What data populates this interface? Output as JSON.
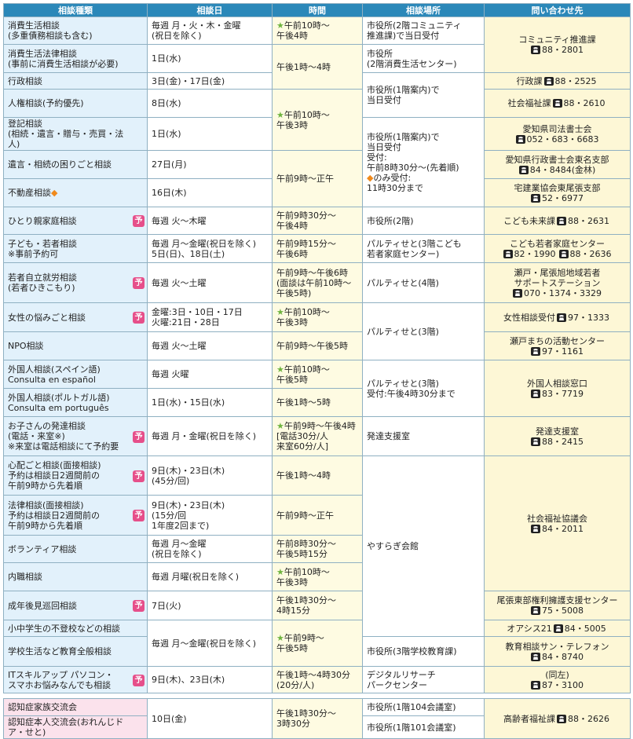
{
  "header": [
    "相談種類",
    "相談日",
    "時間",
    "相談場所",
    "問い合わせ先"
  ],
  "rows": [
    {
      "type": "消費生活相談\n(多重債務相談も含む)",
      "date": "毎週 月・火・木・金曜\n(祝日を除く)",
      "star": "★",
      "time": "午前10時～\n午後4時",
      "place": "市役所(2階コミュニティ\n推進課)で当日受付",
      "contact": {
        "name": "コミュニティ推進課",
        "phones": [
          "88・2801"
        ]
      }
    },
    {
      "type": "消費生活法律相談\n(事前に消費生活相談が必要)",
      "date": "1日(水)",
      "time": "午後1時～4時",
      "place": "市役所\n(2階消費生活センター)"
    },
    {
      "type": "行政相談",
      "date": "3日(金)・17日(金)",
      "place": "市役所(1階案内)で\n当日受付",
      "contact": {
        "name": "行政課",
        "phones": [
          "88・2525"
        ]
      }
    },
    {
      "type": "人権相談(予約優先)",
      "date": "8日(水)",
      "star": "★",
      "time": "午前10時～\n午後3時",
      "contact": {
        "name": "社会福祉課",
        "phones": [
          "88・2610"
        ]
      }
    },
    {
      "type": "登記相談\n(相続・遺言・贈与・売買・法人)",
      "date": "1日(水)",
      "place": "市役所(1階案内)で\n当日受付\n受付:\n午前8時30分～(先着順)\n",
      "place_mark": "◆",
      "place2": "のみ受付:\n11時30分まで",
      "contact": {
        "name": "愛知県司法書士会",
        "phones": [
          "052・683・6683"
        ]
      }
    },
    {
      "type": "遺言・相続の困りごと相談",
      "date": "27日(月)",
      "time": "午前9時～正午",
      "contact": {
        "name": "愛知県行政書士会東名支部",
        "phones": [
          "84・8484(金林)"
        ]
      }
    },
    {
      "type": "不動産相談",
      "type_mark": "◆",
      "date": "16日(木)",
      "contact": {
        "name": "宅建業協会東尾張支部",
        "phones": [
          "52・6977"
        ]
      }
    },
    {
      "type": "ひとり親家庭相談",
      "badge": "予",
      "date": "毎週 火～木曜",
      "time": "午前9時30分～\n午後4時",
      "place": "市役所(2階)",
      "contact": {
        "name": "こども未来課",
        "phones": [
          "88・2631"
        ]
      }
    },
    {
      "type": "子ども・若者相談\n※事前予約可",
      "date": "毎週 月～金曜(祝日を除く)\n5日(日)、18日(土)",
      "time": "午前9時15分～\n午後6時",
      "place": "パルティせと(3階こども\n若者家庭センター)",
      "contact": {
        "name": "こども若者家庭センター",
        "phones": [
          "82・1990",
          "88・2636"
        ]
      }
    },
    {
      "type": "若者自立就労相談\n(若者ひきこもり)",
      "badge": "予",
      "date": "毎週 火～土曜",
      "time": "午前9時～午後6時\n(面談は午前10時～午後5時)",
      "place": "パルティせと(4階)",
      "contact": {
        "name": "瀬戸・尾張旭地域若者\nサポートステーション",
        "phones": [
          "070・1374・3329"
        ]
      }
    },
    {
      "type": "女性の悩みごと相談",
      "badge": "予",
      "date": "金曜:3日・10日・17日\n火曜:21日・28日",
      "star": "★",
      "time": "午前10時～\n午後3時",
      "place": "パルティせと(3階)",
      "contact": {
        "name": "女性相談受付",
        "phones": [
          "97・1333"
        ]
      }
    },
    {
      "type": "NPO相談",
      "date": "毎週 火～土曜",
      "time": "午前9時～午後5時",
      "contact": {
        "name": "瀬戸まちの活動センター",
        "phones": [
          "97・1161"
        ]
      }
    },
    {
      "type": "外国人相談(スペイン語)\nConsulta en español",
      "date": "毎週 火曜",
      "star": "★",
      "time": "午前10時～\n午後5時",
      "place": "パルティせと(3階)\n受付:午後4時30分まで",
      "contact": {
        "name": "外国人相談窓口",
        "phones": [
          "83・7719"
        ]
      }
    },
    {
      "type": "外国人相談(ポルトガル語)\nConsulta em português",
      "date": "1日(水)・15日(水)",
      "time": "午後1時～5時"
    },
    {
      "type": "お子さんの発達相談\n(電話・来室※)\n※来室は電話相談にて予約要",
      "badge": "予",
      "date": "毎週 月・金曜(祝日を除く)",
      "star": "★",
      "time": "午前9時～午後4時\n[電話30分/人\n来室60分/人]",
      "place": "発達支援室",
      "contact": {
        "name": "発達支援室",
        "phones": [
          "88・2415"
        ]
      }
    },
    {
      "type": "心配ごと相談(面接相談)\n予約は相談日2週間前の\n午前9時から先着順",
      "badge": "予",
      "date": "9日(木)・23日(木)\n(45分/回)",
      "time": "午後1時～4時",
      "place": "やすらぎ会館",
      "contact": {
        "name": "社会福祉協議会",
        "phones": [
          "84・2011"
        ]
      }
    },
    {
      "type": "法律相談(面接相談)\n予約は相談日2週間前の\n午前9時から先着順",
      "badge": "予",
      "date": "9日(木)・23日(木)\n(15分/回\n1年度2回まで)",
      "time": "午前9時～正午"
    },
    {
      "type": "ボランティア相談",
      "date": "毎週 月～金曜\n(祝日を除く)",
      "time": "午前8時30分～\n午後5時15分"
    },
    {
      "type": "内職相談",
      "date": "毎週 月曜(祝日を除く)",
      "star": "★",
      "time": "午前10時～\n午後3時"
    },
    {
      "type": "成年後見巡回相談",
      "badge": "予",
      "date": "7日(火)",
      "time": "午後1時30分～\n4時15分",
      "contact": {
        "name": "尾張東部権利擁護支援センター",
        "phones": [
          "75・5008"
        ]
      }
    },
    {
      "type": "小中学生の不登校などの相談",
      "date": "毎週 月～金曜(祝日を除く)",
      "star": "★",
      "time": "午前9時～\n午後5時",
      "contact": {
        "name": "オアシス21",
        "phones": [
          "84・5005"
        ]
      }
    },
    {
      "type": "学校生活など教育全般相談",
      "place": "市役所(3階学校教育課)",
      "contact": {
        "name": "教育相談サン・テレフォン",
        "phones": [
          "84・8740"
        ]
      }
    },
    {
      "type": "ITスキルアップ パソコン・\nスマホお悩みなんでも相談",
      "badge": "予",
      "date": "9日(木)、23日(木)",
      "time": "午後1時～4時30分\n(20分/人)",
      "place": "デジタルリサーチ\nパークセンター",
      "contact": {
        "name": "(同左)",
        "phones": [
          "87・3100"
        ]
      }
    },
    {
      "type": "認知症家族交流会",
      "date": "10日(金)",
      "time": "午後1時30分～\n3時30分",
      "place": "市役所(1階104会議室)",
      "contact": {
        "name": "高齢者福祉課",
        "phones": [
          "88・2626"
        ]
      }
    },
    {
      "type": "認知症本人交流会(おれんじドア・せと)",
      "place": "市役所(1階101会議室)"
    }
  ]
}
